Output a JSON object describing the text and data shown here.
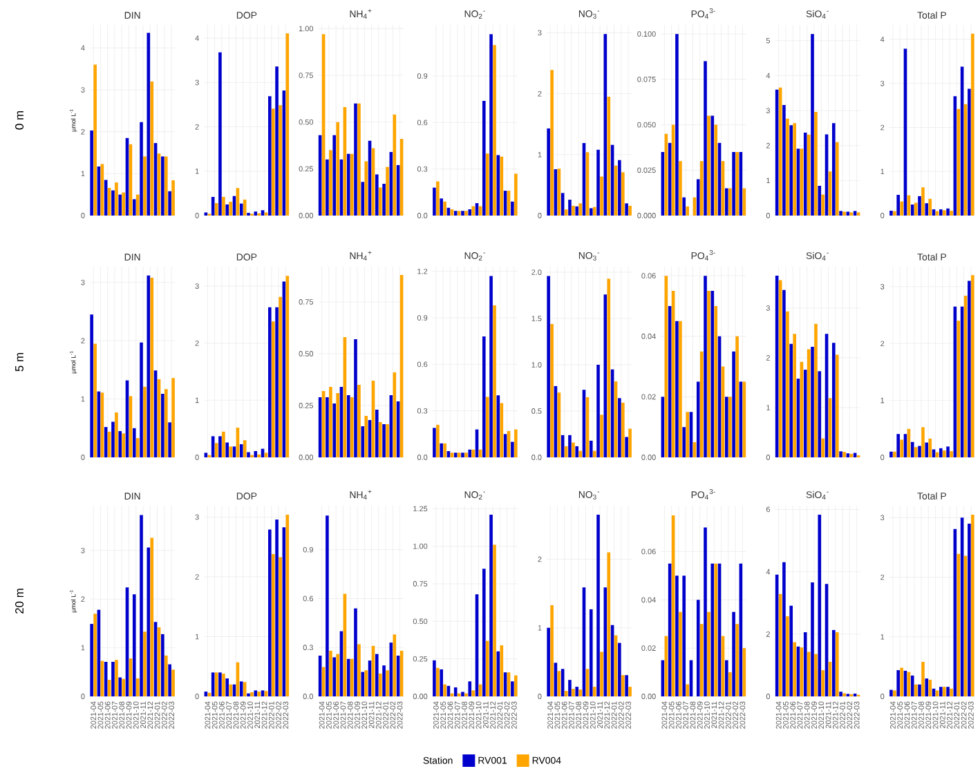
{
  "chart_data": [
    {
      "type": "bar",
      "title": "DIN",
      "ylabel": "µmol L$^{-1}$",
      "annotations": [
        "0 m"
      ],
      "grid": true,
      "tick_labels": "y",
      "categories": [
        "2021-04",
        "2021-05",
        "2021-06",
        "2021-07",
        "2021-08",
        "2021-09",
        "2021-10",
        "2021-11",
        "2021-12",
        "2022-01",
        "2022-02",
        "2022-03"
      ],
      "ylim": [
        0,
        4.55
      ],
      "yticks": [
        0,
        1,
        2,
        3,
        4
      ],
      "series": [
        {
          "color": "#0000cd",
          "values": [
            2.03,
            1.17,
            0.85,
            0.6,
            0.5,
            1.85,
            0.39,
            2.23,
            4.36,
            1.73,
            1.41,
            0.58
          ]
        },
        {
          "color": "#ffa500",
          "values": [
            3.6,
            1.23,
            0.66,
            0.79,
            0.55,
            1.7,
            0.5,
            1.41,
            3.2,
            1.48,
            1.41,
            0.84
          ]
        }
      ]
    },
    {
      "type": "bar",
      "title": "DOP",
      "grid": true,
      "tick_labels": "y",
      "categories": [
        "2021-04",
        "2021-05",
        "2021-06",
        "2021-07",
        "2021-08",
        "2021-09",
        "2021-10",
        "2021-11",
        "2021-12",
        "2022-01",
        "2022-02",
        "2022-03"
      ],
      "ylim": [
        0,
        4.3
      ],
      "yticks": [
        0,
        1,
        2,
        3,
        4
      ],
      "series": [
        {
          "color": "#0000cd",
          "values": [
            0.07,
            0.42,
            3.68,
            0.25,
            0.44,
            0.27,
            0.06,
            0.09,
            0.12,
            2.69,
            3.36,
            2.82
          ]
        },
        {
          "color": "#ffa500",
          "values": [
            0.04,
            0.28,
            0.42,
            0.31,
            0.62,
            0.36,
            0.04,
            0.05,
            0.07,
            2.41,
            2.49,
            4.11
          ]
        }
      ]
    },
    {
      "type": "bar",
      "title": "NH$_{4}$$^{+}$",
      "grid": true,
      "tick_labels": "y",
      "categories": [
        "2021-04",
        "2021-05",
        "2021-06",
        "2021-07",
        "2021-08",
        "2021-09",
        "2021-10",
        "2021-11",
        "2021-12",
        "2022-01",
        "2022-02",
        "2022-03"
      ],
      "ylim": [
        0,
        1.02
      ],
      "yticks": [
        {
          "value": 0,
          "label": "0.00"
        },
        0.25,
        {
          "value": 0.5,
          "label": "0.50"
        },
        0.75,
        {
          "value": 1,
          "label": "1.00"
        }
      ],
      "series": [
        {
          "color": "#0000cd",
          "values": [
            0.43,
            0.3,
            0.43,
            0.3,
            0.33,
            0.6,
            0.18,
            0.4,
            0.22,
            0.17,
            0.34,
            0.27
          ]
        },
        {
          "color": "#ffa500",
          "values": [
            0.97,
            0.35,
            0.5,
            0.58,
            0.33,
            0.6,
            0.29,
            0.36,
            0.15,
            0.26,
            0.54,
            0.41
          ]
        }
      ]
    },
    {
      "type": "bar",
      "title": "NO$_{2}$$^{-}$",
      "grid": true,
      "tick_labels": "y",
      "categories": [
        "2021-04",
        "2021-05",
        "2021-06",
        "2021-07",
        "2021-08",
        "2021-09",
        "2021-10",
        "2021-11",
        "2021-12",
        "2022-01",
        "2022-02",
        "2022-03"
      ],
      "ylim": [
        0,
        1.23
      ],
      "yticks": [
        {
          "value": 0,
          "label": "0.0"
        },
        0.3,
        0.6,
        0.9
      ],
      "series": [
        {
          "color": "#0000cd",
          "values": [
            0.18,
            0.11,
            0.05,
            0.03,
            0.03,
            0.04,
            0.08,
            0.74,
            1.17,
            0.39,
            0.16,
            0.09
          ]
        },
        {
          "color": "#ffa500",
          "values": [
            0.22,
            0.09,
            0.04,
            0.03,
            0.03,
            0.06,
            0.06,
            0.4,
            1.1,
            0.38,
            0.16,
            0.27
          ]
        }
      ]
    },
    {
      "type": "bar",
      "title": "NO$_{3}$$^{-}$",
      "grid": true,
      "tick_labels": "y",
      "categories": [
        "2021-04",
        "2021-05",
        "2021-06",
        "2021-07",
        "2021-08",
        "2021-09",
        "2021-10",
        "2021-11",
        "2021-12",
        "2022-01",
        "2022-02",
        "2022-03"
      ],
      "ylim": [
        0,
        3.13
      ],
      "yticks": [
        0,
        1,
        2,
        3
      ],
      "series": [
        {
          "color": "#0000cd",
          "values": [
            1.43,
            0.76,
            0.37,
            0.26,
            0.15,
            1.19,
            0.12,
            1.08,
            2.98,
            1.16,
            0.91,
            0.2
          ]
        },
        {
          "color": "#ffa500",
          "values": [
            2.39,
            0.77,
            0.1,
            0.16,
            0.2,
            1.04,
            0.14,
            0.64,
            1.95,
            0.82,
            0.71,
            0.16
          ]
        }
      ]
    },
    {
      "type": "bar",
      "title": "PO$_{4}$$^{3-}$",
      "grid": true,
      "tick_labels": "y",
      "categories": [
        "2021-04",
        "2021-05",
        "2021-06",
        "2021-07",
        "2021-08",
        "2021-09",
        "2021-10",
        "2021-11",
        "2021-12",
        "2022-01",
        "2022-02",
        "2022-03"
      ],
      "ylim": [
        0,
        0.105
      ],
      "yticks": [
        {
          "value": 0,
          "label": "0.000"
        },
        0.025,
        {
          "value": 0.05,
          "label": "0.050"
        },
        0.075,
        {
          "value": 0.1,
          "label": "0.100"
        }
      ],
      "series": [
        {
          "color": "#0000cd",
          "values": [
            0.035,
            0.04,
            0.1,
            0.01,
            null,
            0.02,
            0.085,
            0.055,
            0.04,
            0.015,
            0.035,
            0.035
          ]
        },
        {
          "color": "#ffa500",
          "values": [
            0.045,
            0.05,
            0.03,
            0.005,
            0.01,
            0.03,
            0.055,
            0.05,
            0.03,
            0.015,
            0.035,
            0.015
          ]
        }
      ]
    },
    {
      "type": "bar",
      "title": "SiO$_{4}$$^{-}$",
      "grid": true,
      "tick_labels": "y",
      "categories": [
        "2021-04",
        "2021-05",
        "2021-06",
        "2021-07",
        "2021-08",
        "2021-09",
        "2021-10",
        "2021-11",
        "2021-12",
        "2022-01",
        "2022-02",
        "2022-03"
      ],
      "ylim": [
        0,
        5.45
      ],
      "yticks": [
        0,
        1,
        2,
        3,
        4,
        5
      ],
      "series": [
        {
          "color": "#0000cd",
          "values": [
            3.6,
            3.16,
            2.58,
            1.91,
            2.37,
            5.19,
            0.85,
            2.32,
            2.64,
            0.13,
            0.11,
            0.13
          ]
        },
        {
          "color": "#ffa500",
          "values": [
            3.66,
            2.77,
            2.64,
            1.91,
            2.31,
            2.96,
            0.6,
            1.26,
            2.1,
            0.11,
            0.09,
            0.09
          ]
        }
      ]
    },
    {
      "type": "bar",
      "title": "Total P",
      "grid": true,
      "tick_labels": "y",
      "categories": [
        "2021-04",
        "2021-05",
        "2021-06",
        "2021-07",
        "2021-08",
        "2021-09",
        "2021-10",
        "2021-11",
        "2021-12",
        "2022-01",
        "2022-02",
        "2022-03"
      ],
      "ylim": [
        0,
        4.33
      ],
      "yticks": [
        0,
        1,
        2,
        3,
        4
      ],
      "series": [
        {
          "color": "#0000cd",
          "values": [
            0.11,
            0.47,
            3.79,
            0.25,
            0.44,
            0.28,
            0.14,
            0.14,
            0.16,
            2.71,
            3.38,
            2.88
          ]
        },
        {
          "color": "#ffa500",
          "values": [
            0.1,
            0.32,
            0.46,
            0.29,
            0.64,
            0.38,
            0.1,
            0.12,
            0.11,
            2.42,
            2.53,
            4.13
          ]
        }
      ]
    },
    {
      "type": "bar",
      "title": "DIN",
      "ylabel": "µmol L$^{-1}$",
      "annotations": [
        "5 m"
      ],
      "grid": true,
      "tick_labels": "y",
      "categories": [
        "2021-04",
        "2021-05",
        "2021-06",
        "2021-07",
        "2021-08",
        "2021-09",
        "2021-10",
        "2021-11",
        "2021-12",
        "2022-01",
        "2022-02",
        "2022-03"
      ],
      "ylim": [
        0,
        3.27
      ],
      "yticks": [
        0,
        1,
        2,
        3
      ],
      "series": [
        {
          "color": "#0000cd",
          "values": [
            2.45,
            1.13,
            0.52,
            0.61,
            0.45,
            1.32,
            0.5,
            1.97,
            3.12,
            1.49,
            1.09,
            0.6
          ]
        },
        {
          "color": "#ffa500",
          "values": [
            1.95,
            1.11,
            0.44,
            0.77,
            0.41,
            1.05,
            0.33,
            1.21,
            3.08,
            1.34,
            1.17,
            1.36
          ]
        }
      ]
    },
    {
      "type": "bar",
      "title": "DOP",
      "grid": true,
      "tick_labels": "y",
      "categories": [
        "2021-04",
        "2021-05",
        "2021-06",
        "2021-07",
        "2021-08",
        "2021-09",
        "2021-10",
        "2021-11",
        "2021-12",
        "2022-01",
        "2022-02",
        "2022-03"
      ],
      "ylim": [
        0,
        3.34
      ],
      "yticks": [
        0,
        1,
        2,
        3
      ],
      "series": [
        {
          "color": "#0000cd",
          "values": [
            0.08,
            0.37,
            0.37,
            0.26,
            0.19,
            0.23,
            0.09,
            0.11,
            0.15,
            2.63,
            2.63,
            3.08
          ]
        },
        {
          "color": "#ffa500",
          "values": [
            0.04,
            0.25,
            0.45,
            0.19,
            0.52,
            0.3,
            0.04,
            0.05,
            0.08,
            2.38,
            2.81,
            3.18
          ]
        }
      ]
    },
    {
      "type": "bar",
      "title": "NH$_{4}$$^{+}$",
      "grid": true,
      "tick_labels": "y",
      "categories": [
        "2021-04",
        "2021-05",
        "2021-06",
        "2021-07",
        "2021-08",
        "2021-09",
        "2021-10",
        "2021-11",
        "2021-12",
        "2022-01",
        "2022-02",
        "2022-03"
      ],
      "ylim": [
        0,
        0.92
      ],
      "yticks": [
        {
          "value": 0,
          "label": "0.00"
        },
        0.25,
        {
          "value": 0.5,
          "label": "0.50"
        },
        0.75
      ],
      "series": [
        {
          "color": "#0000cd",
          "values": [
            0.29,
            0.29,
            0.26,
            0.34,
            0.3,
            0.57,
            0.15,
            0.18,
            0.23,
            0.16,
            0.3,
            0.27
          ]
        },
        {
          "color": "#ffa500",
          "values": [
            0.32,
            0.34,
            0.31,
            0.58,
            0.29,
            0.35,
            0.2,
            0.37,
            0.17,
            0.16,
            0.41,
            0.88
          ]
        }
      ]
    },
    {
      "type": "bar",
      "title": "NO$_{2}$$^{-}$",
      "grid": true,
      "tick_labels": "y",
      "categories": [
        "2021-04",
        "2021-05",
        "2021-06",
        "2021-07",
        "2021-08",
        "2021-09",
        "2021-10",
        "2021-11",
        "2021-12",
        "2022-01",
        "2022-02",
        "2022-03"
      ],
      "ylim": [
        0,
        1.23
      ],
      "yticks": [
        {
          "value": 0,
          "label": "0.0"
        },
        0.3,
        0.6,
        0.9,
        1.2
      ],
      "series": [
        {
          "color": "#0000cd",
          "values": [
            0.19,
            0.09,
            0.04,
            0.03,
            0.03,
            0.05,
            0.18,
            0.78,
            1.17,
            0.4,
            0.15,
            0.1
          ]
        },
        {
          "color": "#ffa500",
          "values": [
            0.21,
            0.09,
            0.03,
            0.03,
            0.03,
            0.05,
            0.05,
            0.39,
            0.98,
            0.35,
            0.17,
            0.18
          ]
        }
      ]
    },
    {
      "type": "bar",
      "title": "NO$_{3}$$^{-}$",
      "grid": true,
      "tick_labels": "y",
      "categories": [
        "2021-04",
        "2021-05",
        "2021-06",
        "2021-07",
        "2021-08",
        "2021-09",
        "2021-10",
        "2021-11",
        "2021-12",
        "2022-01",
        "2022-02",
        "2022-03"
      ],
      "ylim": [
        0,
        2.06
      ],
      "yticks": [
        {
          "value": 0,
          "label": "0.0"
        },
        0.5,
        {
          "value": 1,
          "label": "1.0"
        },
        1.5,
        {
          "value": 2,
          "label": "2.0"
        }
      ],
      "series": [
        {
          "color": "#0000cd",
          "values": [
            1.96,
            0.77,
            0.24,
            0.24,
            0.12,
            0.73,
            0.18,
            1.0,
            1.76,
            0.95,
            0.64,
            0.22
          ]
        },
        {
          "color": "#ffa500",
          "values": [
            1.44,
            0.7,
            0.12,
            0.16,
            0.07,
            0.65,
            0.07,
            0.46,
            1.93,
            0.82,
            0.59,
            0.31
          ]
        }
      ]
    },
    {
      "type": "bar",
      "title": "PO$_{4}$$^{3-}$",
      "grid": true,
      "tick_labels": "y",
      "categories": [
        "2021-04",
        "2021-05",
        "2021-06",
        "2021-07",
        "2021-08",
        "2021-09",
        "2021-10",
        "2021-11",
        "2021-12",
        "2022-01",
        "2022-02",
        "2022-03"
      ],
      "ylim": [
        0,
        0.063
      ],
      "yticks": [
        {
          "value": 0,
          "label": "0.00"
        },
        0.02,
        0.04,
        0.06
      ],
      "series": [
        {
          "color": "#0000cd",
          "values": [
            0.02,
            0.05,
            0.045,
            0.01,
            0.015,
            0.025,
            0.06,
            0.055,
            0.04,
            0.02,
            0.035,
            0.025
          ]
        },
        {
          "color": "#ffa500",
          "values": [
            0.06,
            0.055,
            0.045,
            0.015,
            0.005,
            0.035,
            0.055,
            0.05,
            0.03,
            0.02,
            0.04,
            0.025
          ]
        }
      ]
    },
    {
      "type": "bar",
      "title": "SiO$_{4}$$^{-}$",
      "grid": true,
      "tick_labels": "y",
      "categories": [
        "2021-04",
        "2021-05",
        "2021-06",
        "2021-07",
        "2021-08",
        "2021-09",
        "2021-10",
        "2021-11",
        "2021-12",
        "2022-01",
        "2022-02",
        "2022-03"
      ],
      "ylim": [
        0,
        3.83
      ],
      "yticks": [
        0,
        1,
        2,
        3
      ],
      "series": [
        {
          "color": "#0000cd",
          "values": [
            3.65,
            3.36,
            2.28,
            1.58,
            1.76,
            2.22,
            1.73,
            2.48,
            2.3,
            0.12,
            0.08,
            0.09
          ]
        },
        {
          "color": "#ffa500",
          "values": [
            3.56,
            2.93,
            2.48,
            1.92,
            2.17,
            2.68,
            0.38,
            1.19,
            2.06,
            0.11,
            0.07,
            0.04
          ]
        }
      ]
    },
    {
      "type": "bar",
      "title": "Total P",
      "grid": true,
      "tick_labels": "y",
      "categories": [
        "2021-04",
        "2021-05",
        "2021-06",
        "2021-07",
        "2021-08",
        "2021-09",
        "2021-10",
        "2021-11",
        "2021-12",
        "2022-01",
        "2022-02",
        "2022-03"
      ],
      "ylim": [
        0,
        3.35
      ],
      "yticks": [
        0,
        1,
        2,
        3
      ],
      "series": [
        {
          "color": "#0000cd",
          "values": [
            0.1,
            0.41,
            0.41,
            0.27,
            0.2,
            0.26,
            0.14,
            0.16,
            0.19,
            2.65,
            2.65,
            3.1
          ]
        },
        {
          "color": "#ffa500",
          "values": [
            0.1,
            0.31,
            0.5,
            0.18,
            0.53,
            0.33,
            0.09,
            0.12,
            0.11,
            2.4,
            2.84,
            3.2
          ]
        }
      ]
    },
    {
      "type": "bar",
      "title": "DIN",
      "ylabel": "µmol L$^{-1}$",
      "annotations": [
        "20 m"
      ],
      "grid": true,
      "categories": [
        "2021-04",
        "2021-05",
        "2021-06",
        "2021-07",
        "2021-08",
        "2021-09",
        "2021-10",
        "2021-11",
        "2021-12",
        "2022-01",
        "2022-02",
        "2022-03"
      ],
      "ylim": [
        0,
        3.92
      ],
      "yticks": [
        0,
        1,
        2,
        3
      ],
      "series": [
        {
          "color": "#0000cd",
          "values": [
            1.49,
            1.78,
            0.71,
            0.71,
            0.39,
            2.24,
            2.1,
            3.73,
            3.06,
            1.53,
            1.28,
            0.66
          ]
        },
        {
          "color": "#ffa500",
          "values": [
            1.7,
            0.73,
            0.34,
            0.75,
            0.36,
            0.78,
            0.37,
            1.33,
            3.26,
            1.42,
            0.84,
            0.55
          ]
        }
      ]
    },
    {
      "type": "bar",
      "title": "DOP",
      "grid": true,
      "categories": [
        "2021-04",
        "2021-05",
        "2021-06",
        "2021-07",
        "2021-08",
        "2021-09",
        "2021-10",
        "2021-11",
        "2021-12",
        "2022-01",
        "2022-02",
        "2022-03"
      ],
      "ylim": [
        0,
        3.19
      ],
      "yticks": [
        0,
        1,
        2,
        3
      ],
      "series": [
        {
          "color": "#0000cd",
          "values": [
            0.08,
            0.4,
            0.4,
            0.3,
            0.2,
            0.25,
            0.05,
            0.1,
            0.1,
            2.79,
            2.96,
            2.83
          ]
        },
        {
          "color": "#ffa500",
          "values": [
            0.06,
            0.4,
            0.38,
            0.2,
            0.57,
            0.24,
            0.07,
            0.08,
            0.09,
            2.38,
            2.33,
            3.04
          ]
        }
      ]
    },
    {
      "type": "bar",
      "title": "NH$_{4}$$^{+}$",
      "grid": true,
      "categories": [
        "2021-04",
        "2021-05",
        "2021-06",
        "2021-07",
        "2021-08",
        "2021-09",
        "2021-10",
        "2021-11",
        "2021-12",
        "2022-01",
        "2022-02",
        "2022-03"
      ],
      "ylim": [
        0,
        1.17
      ],
      "yticks": [
        {
          "value": 0,
          "label": "0.0"
        },
        0.3,
        0.6,
        0.9
      ],
      "series": [
        {
          "color": "#0000cd",
          "values": [
            0.25,
            1.11,
            0.24,
            0.4,
            0.23,
            0.54,
            0.15,
            0.22,
            0.26,
            0.19,
            0.33,
            0.25
          ]
        },
        {
          "color": "#ffa500",
          "values": [
            0.18,
            0.28,
            0.26,
            0.63,
            0.23,
            0.32,
            0.16,
            0.31,
            0.14,
            0.16,
            0.38,
            0.28
          ]
        }
      ]
    },
    {
      "type": "bar",
      "title": "NO$_{2}$$^{-}$",
      "grid": true,
      "categories": [
        "2021-04",
        "2021-05",
        "2021-06",
        "2021-07",
        "2021-08",
        "2021-09",
        "2021-10",
        "2021-11",
        "2021-12",
        "2022-01",
        "2022-02",
        "2022-03"
      ],
      "ylim": [
        0,
        1.27
      ],
      "yticks": [
        {
          "value": 0,
          "label": "0.00"
        },
        0.25,
        {
          "value": 0.5,
          "label": "0.50"
        },
        0.75,
        {
          "value": 1,
          "label": "1.00"
        },
        1.25
      ],
      "series": [
        {
          "color": "#0000cd",
          "values": [
            0.24,
            0.18,
            0.07,
            0.06,
            0.03,
            0.1,
            0.68,
            0.85,
            1.21,
            0.3,
            0.16,
            0.1
          ]
        },
        {
          "color": "#ffa500",
          "values": [
            0.19,
            0.08,
            0.02,
            0.02,
            0.02,
            0.04,
            0.08,
            0.37,
            1.01,
            0.34,
            0.16,
            0.14
          ]
        }
      ]
    },
    {
      "type": "bar",
      "title": "NO$_{3}$$^{-}$",
      "grid": true,
      "legend": "bottom",
      "legend_title": "Station",
      "categories": [
        "2021-04",
        "2021-05",
        "2021-06",
        "2021-07",
        "2021-08",
        "2021-09",
        "2021-10",
        "2021-11",
        "2021-12",
        "2022-01",
        "2022-02",
        "2022-03"
      ],
      "ylim": [
        0,
        2.78
      ],
      "yticks": [
        0,
        1,
        2
      ],
      "series": [
        {
          "name": "RV001",
          "color": "#0000cd",
          "values": [
            1.0,
            0.49,
            0.4,
            0.24,
            0.14,
            1.59,
            1.27,
            2.65,
            1.59,
            1.04,
            0.78,
            0.31
          ]
        },
        {
          "name": "RV004",
          "color": "#ffa500",
          "values": [
            1.33,
            0.37,
            0.08,
            0.11,
            0.1,
            0.4,
            0.14,
            0.65,
            2.1,
            0.89,
            0.31,
            0.14
          ]
        }
      ]
    },
    {
      "type": "bar",
      "title": "PO$_{4}$$^{3-}$",
      "grid": true,
      "categories": [
        "2021-04",
        "2021-05",
        "2021-06",
        "2021-07",
        "2021-08",
        "2021-09",
        "2021-10",
        "2021-11",
        "2021-12",
        "2022-01",
        "2022-02",
        "2022-03"
      ],
      "ylim": [
        0,
        0.079
      ],
      "yticks": [
        {
          "value": 0,
          "label": "0.00"
        },
        0.02,
        0.04,
        0.06
      ],
      "series": [
        {
          "color": "#0000cd",
          "values": [
            0.015,
            0.055,
            0.05,
            0.05,
            0.015,
            0.04,
            0.07,
            0.055,
            0.055,
            0.015,
            0.035,
            0.055
          ]
        },
        {
          "color": "#ffa500",
          "values": [
            0.025,
            0.075,
            0.035,
            0.005,
            null,
            0.03,
            0.035,
            0.055,
            0.025,
            0.01,
            0.03,
            0.02
          ]
        }
      ]
    },
    {
      "type": "bar",
      "title": "SiO$_{4}$$^{-}$",
      "grid": true,
      "categories": [
        "2021-04",
        "2021-05",
        "2021-06",
        "2021-07",
        "2021-08",
        "2021-09",
        "2021-10",
        "2021-11",
        "2021-12",
        "2022-01",
        "2022-02",
        "2022-03"
      ],
      "ylim": [
        0,
        6.12
      ],
      "yticks": [
        0,
        2,
        4,
        6
      ],
      "series": [
        {
          "color": "#0000cd",
          "values": [
            3.91,
            4.31,
            2.91,
            1.6,
            2.06,
            3.66,
            5.83,
            3.61,
            2.13,
            0.15,
            0.08,
            0.09
          ]
        },
        {
          "color": "#ffa500",
          "values": [
            3.29,
            2.57,
            1.74,
            1.57,
            1.43,
            1.36,
            0.84,
            1.11,
            2.06,
            0.1,
            0.07,
            0.05
          ]
        }
      ]
    },
    {
      "type": "bar",
      "title": "Total P",
      "grid": true,
      "categories": [
        "2021-04",
        "2021-05",
        "2021-06",
        "2021-07",
        "2021-08",
        "2021-09",
        "2021-10",
        "2021-11",
        "2021-12",
        "2022-01",
        "2022-02",
        "2022-03"
      ],
      "ylim": [
        0,
        3.2
      ],
      "yticks": [
        0,
        1,
        2,
        3
      ],
      "series": [
        {
          "color": "#0000cd",
          "values": [
            0.11,
            0.44,
            0.43,
            0.35,
            0.2,
            0.3,
            0.13,
            0.16,
            0.16,
            2.81,
            3.0,
            2.9
          ]
        },
        {
          "color": "#ffa500",
          "values": [
            0.1,
            0.48,
            0.41,
            0.2,
            0.58,
            0.28,
            0.1,
            0.16,
            0.13,
            2.39,
            2.36,
            3.05
          ]
        }
      ]
    }
  ]
}
